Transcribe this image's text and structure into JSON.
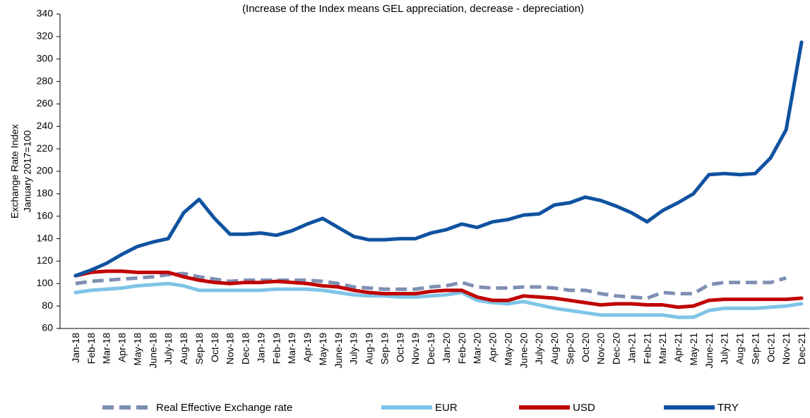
{
  "chart_data": {
    "type": "line",
    "title": "(Increase of the Index means GEL appreciation, decrease - depreciation)",
    "y_label": [
      "Exchange Rate Index",
      "January 2017=100"
    ],
    "categories": [
      "Jan-18",
      "Feb-18",
      "Mar-18",
      "Apr-18",
      "May-18",
      "June-18",
      "July-18",
      "Aug-18",
      "Sep-18",
      "Oct-18",
      "Nov-18",
      "Dec-18",
      "Jan-19",
      "Feb-19",
      "Mar-19",
      "Apr-19",
      "May-19",
      "June-19",
      "July-19",
      "Aug-19",
      "Sep-19",
      "Oct-19",
      "Nov-19",
      "Dec-19",
      "Jan-20",
      "Feb-20",
      "Mar-20",
      "Apr-20",
      "May-20",
      "June-20",
      "July-20",
      "Aug-20",
      "Sep-20",
      "Oct-20",
      "Nov-20",
      "Dec-20",
      "Jan-21",
      "Feb-21",
      "Mar-21",
      "Apr-21",
      "May-21",
      "June-21",
      "July-21",
      "Aug-21",
      "Sep-21",
      "Oct-21",
      "Nov-21",
      "Dec-21"
    ],
    "series": [
      {
        "name": "Real Effective Exchange rate",
        "color": "#7f8fb3",
        "dash": true,
        "values": [
          100,
          102,
          103,
          104,
          105,
          106,
          108,
          109,
          106,
          104,
          102,
          103,
          103,
          103,
          103,
          103,
          102,
          100,
          97,
          96,
          95,
          95,
          95,
          97,
          98,
          101,
          97,
          96,
          96,
          97,
          97,
          96,
          94,
          94,
          91,
          89,
          88,
          87,
          92,
          91,
          91,
          99,
          101,
          101,
          101,
          101,
          105,
          null
        ]
      },
      {
        "name": "EUR",
        "color": "#7fc4e8",
        "values": [
          92,
          94,
          95,
          96,
          98,
          99,
          100,
          98,
          94,
          94,
          94,
          94,
          94,
          95,
          95,
          95,
          94,
          92,
          90,
          89,
          89,
          88,
          88,
          89,
          90,
          92,
          85,
          83,
          82,
          84,
          81,
          78,
          76,
          74,
          72,
          72,
          72,
          72,
          72,
          70,
          70,
          76,
          78,
          78,
          78,
          79,
          80,
          82
        ]
      },
      {
        "name": "USD",
        "color": "#c00000",
        "values": [
          107,
          110,
          111,
          111,
          110,
          110,
          110,
          106,
          103,
          101,
          100,
          101,
          101,
          102,
          101,
          100,
          98,
          97,
          94,
          92,
          91,
          91,
          91,
          93,
          94,
          94,
          88,
          85,
          85,
          89,
          88,
          87,
          85,
          83,
          81,
          82,
          82,
          81,
          81,
          79,
          80,
          85,
          86,
          86,
          86,
          86,
          86,
          87
        ]
      },
      {
        "name": "TRY",
        "color": "#0f52a0",
        "values": [
          107,
          112,
          118,
          126,
          133,
          137,
          140,
          163,
          175,
          158,
          144,
          144,
          145,
          143,
          147,
          153,
          158,
          150,
          142,
          139,
          139,
          140,
          140,
          145,
          148,
          153,
          150,
          155,
          157,
          161,
          162,
          170,
          172,
          177,
          174,
          169,
          163,
          155,
          165,
          172,
          180,
          197,
          198,
          197,
          198,
          212,
          237,
          315
        ]
      }
    ],
    "ylim": [
      60,
      340
    ],
    "yticks": [
      60,
      80,
      100,
      120,
      140,
      160,
      180,
      200,
      220,
      240,
      260,
      280,
      300,
      320,
      340
    ]
  }
}
